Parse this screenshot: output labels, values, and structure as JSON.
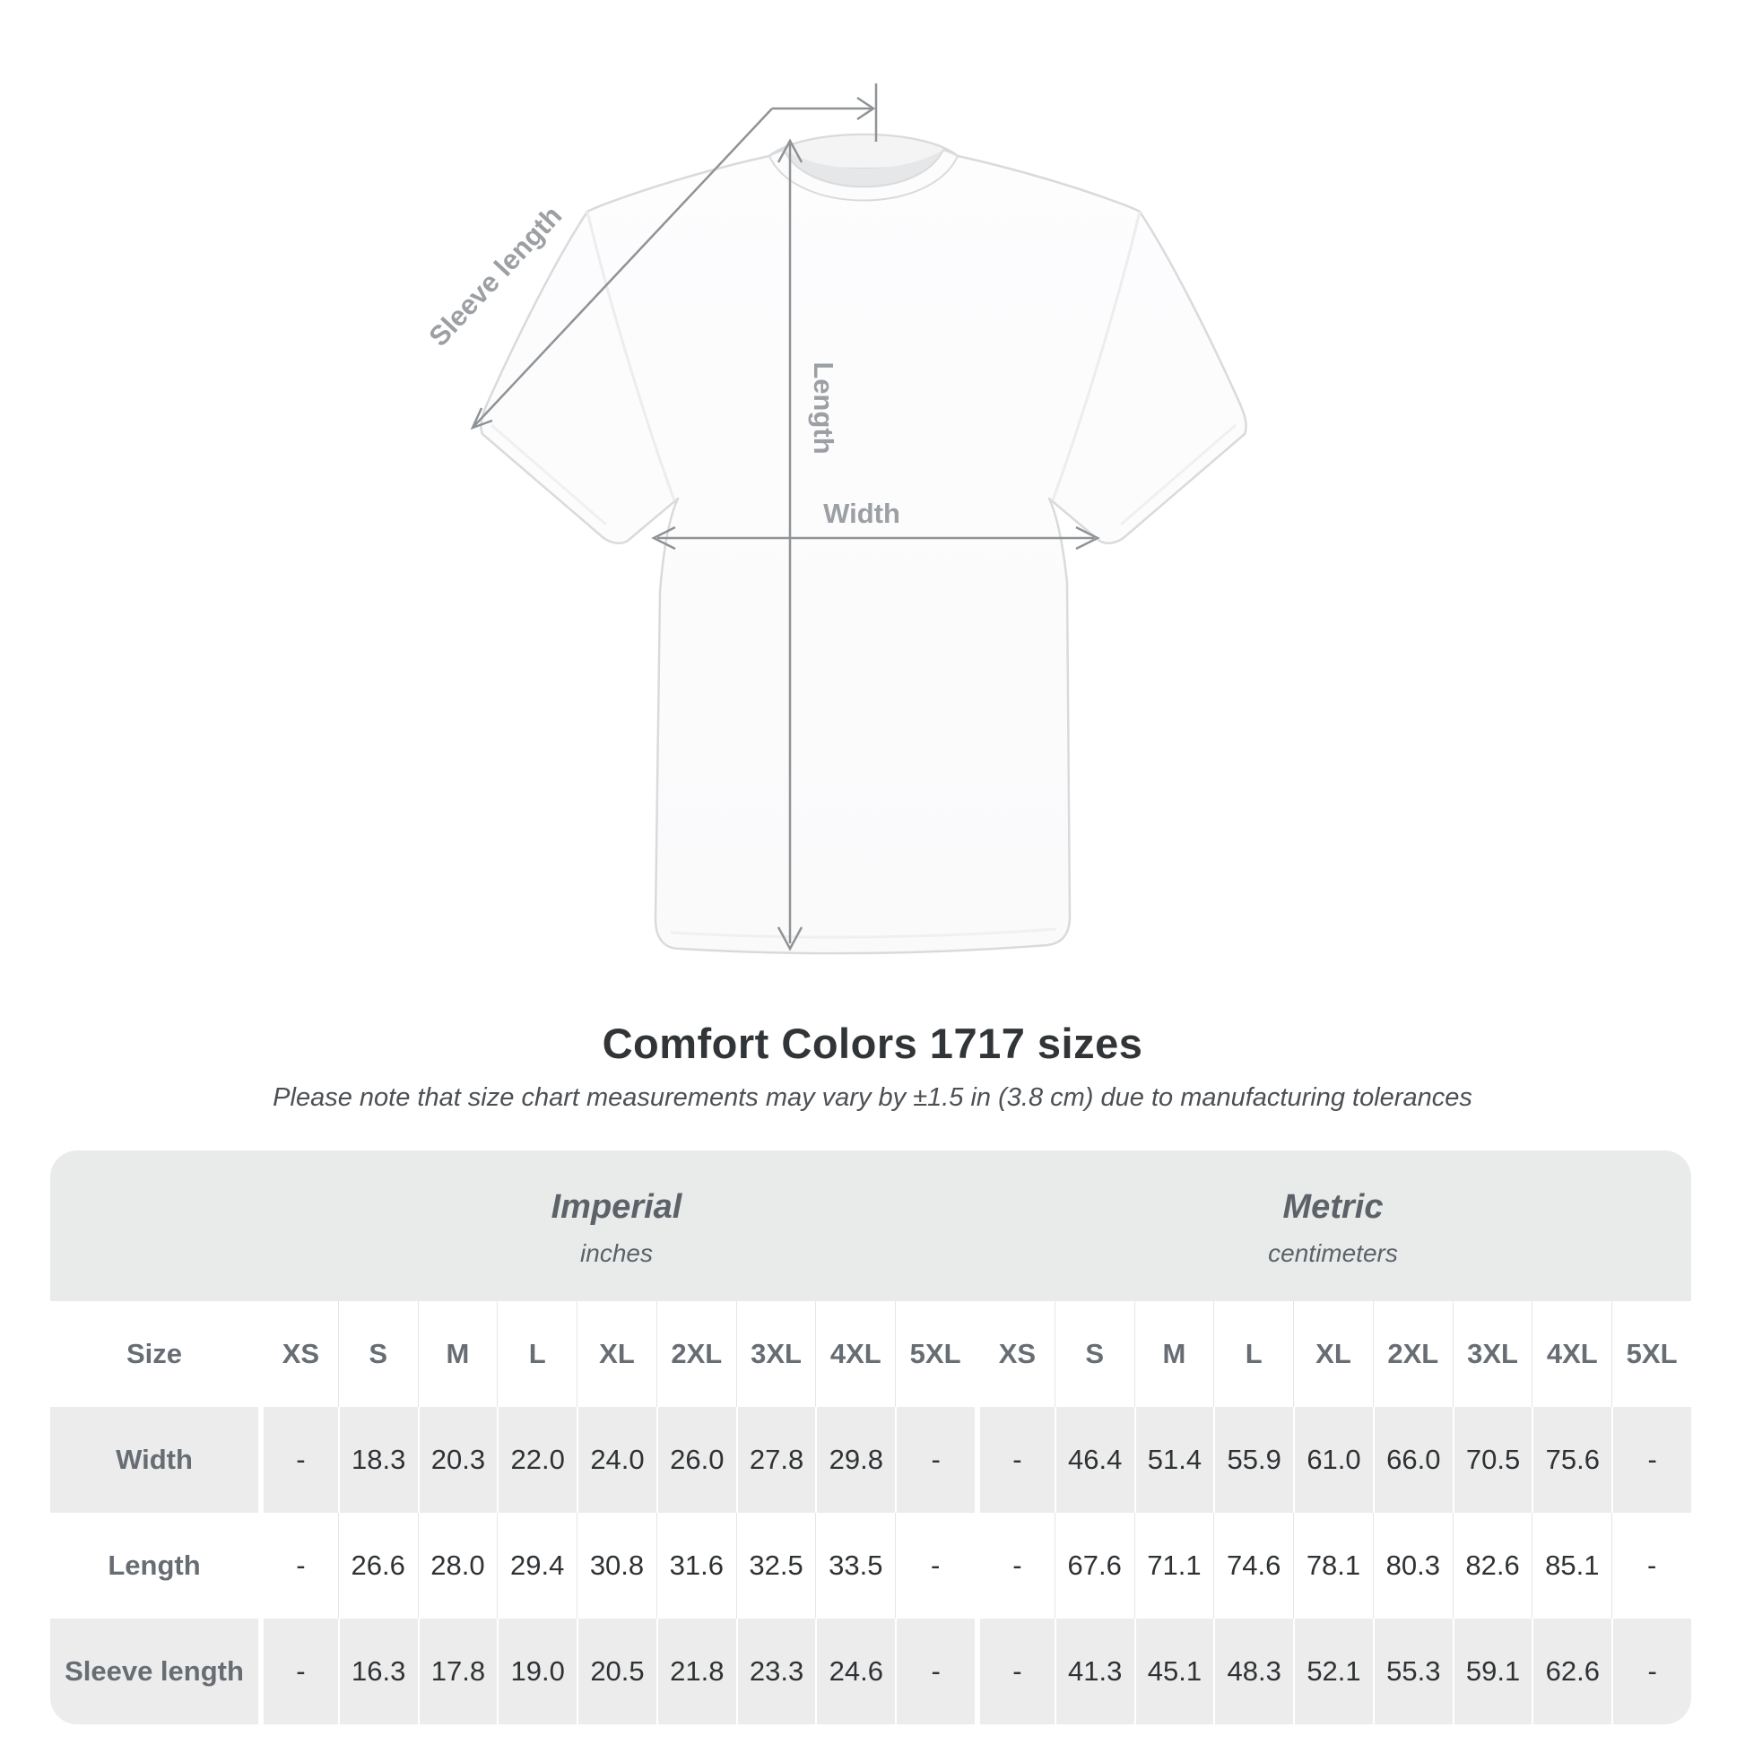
{
  "diagram": {
    "labels": {
      "sleeve_length": "Sleeve length",
      "length": "Length",
      "width": "Width"
    }
  },
  "title": "Comfort Colors 1717 sizes",
  "subtitle": "Please note that size chart measurements may vary by ±1.5 in (3.8 cm) due to manufacturing tolerances",
  "table": {
    "size_label": "Size",
    "groups": [
      {
        "name": "Imperial",
        "unit": "inches"
      },
      {
        "name": "Metric",
        "unit": "centimeters"
      }
    ],
    "sizes": [
      "XS",
      "S",
      "M",
      "L",
      "XL",
      "2XL",
      "3XL",
      "4XL",
      "5XL"
    ],
    "rows": [
      {
        "label": "Width",
        "imperial": [
          "-",
          "18.3",
          "20.3",
          "22.0",
          "24.0",
          "26.0",
          "27.8",
          "29.8",
          "-"
        ],
        "metric": [
          "-",
          "46.4",
          "51.4",
          "55.9",
          "61.0",
          "66.0",
          "70.5",
          "75.6",
          "-"
        ]
      },
      {
        "label": "Length",
        "imperial": [
          "-",
          "26.6",
          "28.0",
          "29.4",
          "30.8",
          "31.6",
          "32.5",
          "33.5",
          "-"
        ],
        "metric": [
          "-",
          "67.6",
          "71.1",
          "74.6",
          "78.1",
          "80.3",
          "82.6",
          "85.1",
          "-"
        ]
      },
      {
        "label": "Sleeve length",
        "imperial": [
          "-",
          "16.3",
          "17.8",
          "19.0",
          "20.5",
          "21.8",
          "23.3",
          "24.6",
          "-"
        ],
        "metric": [
          "-",
          "41.3",
          "45.1",
          "48.3",
          "52.1",
          "55.3",
          "59.1",
          "62.6",
          "-"
        ]
      }
    ]
  },
  "colors": {
    "annotation_line": "#8f9396",
    "annotation_label": "#9c9fa3",
    "table_band_bg": "#e9eaea",
    "table_row_gray": "#ececec",
    "title_text": "#323537"
  }
}
